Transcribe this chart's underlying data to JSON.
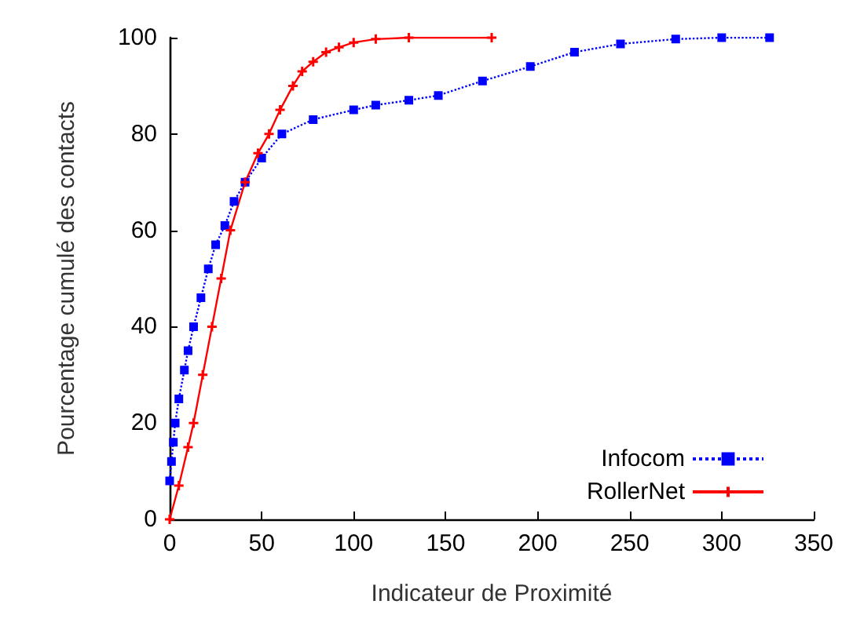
{
  "chart_data": {
    "type": "line",
    "xlabel": "Indicateur de Proximité",
    "ylabel": "Pourcentage cumulé des contacts",
    "xlim": [
      0,
      350
    ],
    "xticks": [
      0,
      50,
      100,
      150,
      200,
      250,
      300,
      350
    ],
    "ylim": [
      0,
      100
    ],
    "yticks": [
      0,
      20,
      40,
      60,
      80,
      100
    ],
    "grid": false,
    "legend": "bottom right",
    "series": [
      {
        "name": "Infocom",
        "color": "#0000ff",
        "marker": "square",
        "line_style": "dotted",
        "x": [
          0,
          1,
          2,
          3,
          5,
          8,
          10,
          13,
          17,
          21,
          25,
          30,
          35,
          41,
          50,
          61,
          78,
          100,
          112,
          130,
          146,
          170,
          196,
          220,
          245,
          275,
          300,
          326
        ],
        "values": [
          8,
          12,
          16,
          20,
          25,
          31,
          35,
          40,
          46,
          52,
          57,
          61,
          66,
          70,
          75,
          80,
          83,
          85,
          86,
          87,
          88,
          91,
          94,
          97,
          98.7,
          99.7,
          100,
          100
        ]
      },
      {
        "name": "RollerNet",
        "color": "#ff0000",
        "marker": "cross",
        "line_style": "solid",
        "x": [
          0,
          5,
          10,
          13,
          18,
          23,
          28,
          33,
          41,
          48,
          54,
          60,
          67,
          72,
          78,
          85,
          92,
          100,
          112,
          130,
          175
        ],
        "values": [
          0,
          7,
          15,
          20,
          30,
          40,
          50,
          60,
          70,
          76,
          80,
          85,
          90,
          93,
          95,
          97,
          98,
          99,
          99.7,
          100,
          100
        ]
      }
    ]
  }
}
